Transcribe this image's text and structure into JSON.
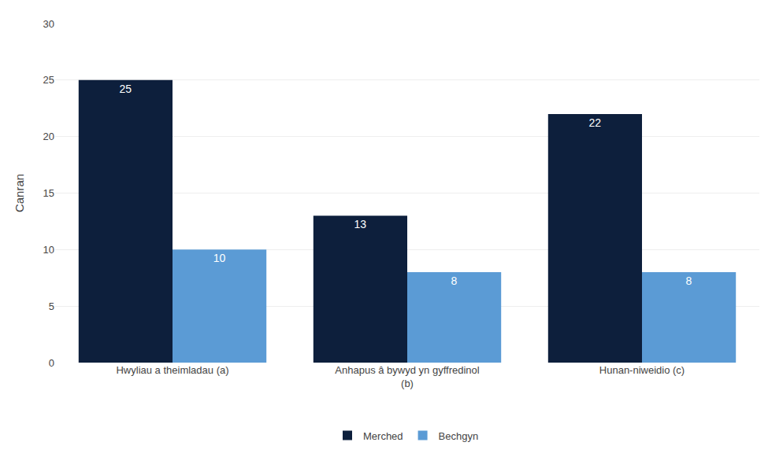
{
  "chart_data": {
    "type": "bar",
    "categories": [
      "Hwyliau a theimladau (a)",
      "Anhapus â bywyd yn gyffredinol\n(b)",
      "Hunan-niweidio (c)"
    ],
    "series": [
      {
        "name": "Merched",
        "color": "#0d1f3c",
        "values": [
          25,
          13,
          22
        ]
      },
      {
        "name": "Bechgyn",
        "color": "#5b9bd5",
        "values": [
          10,
          8,
          8
        ]
      }
    ],
    "y_label": "Canran",
    "ylim": [
      0,
      30
    ],
    "yticks": [
      0,
      5,
      10,
      15,
      20,
      25,
      30
    ],
    "grid": true,
    "legend": "bottom",
    "data_labels": true
  }
}
